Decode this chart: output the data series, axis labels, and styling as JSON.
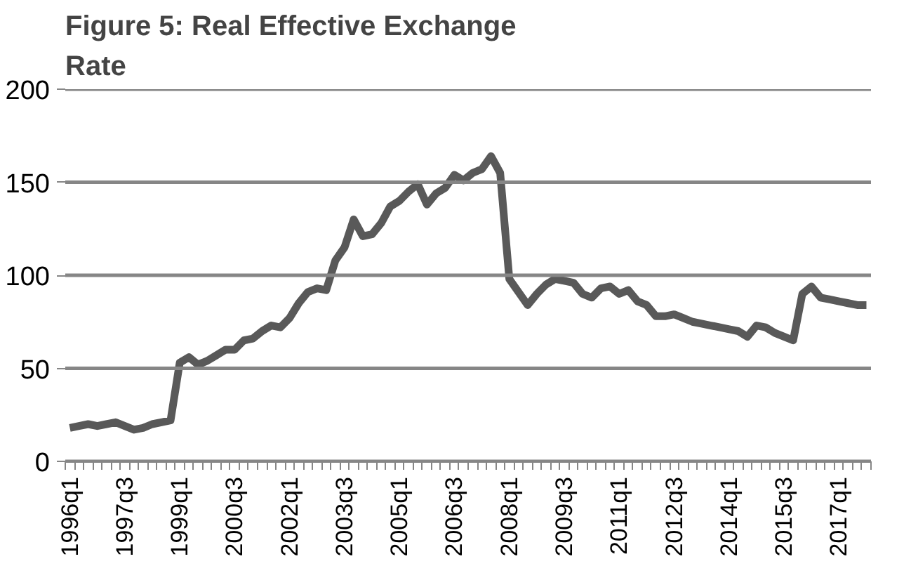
{
  "chart_data": {
    "type": "line",
    "title": "Figure 5: Real Effective Exchange Rate",
    "categories": [
      "1996q1",
      null,
      null,
      null,
      null,
      null,
      "1997q3",
      null,
      null,
      null,
      null,
      null,
      "1999q1",
      null,
      null,
      null,
      null,
      null,
      "2000q3",
      null,
      null,
      null,
      null,
      null,
      "2002q1",
      null,
      null,
      null,
      null,
      null,
      "2003q3",
      null,
      null,
      null,
      null,
      null,
      "2005q1",
      null,
      null,
      null,
      null,
      null,
      "2006q3",
      null,
      null,
      null,
      null,
      null,
      "2008q1",
      null,
      null,
      null,
      null,
      null,
      "2009q3",
      null,
      null,
      null,
      null,
      null,
      "2011q1",
      null,
      null,
      null,
      null,
      null,
      "2012q3",
      null,
      null,
      null,
      null,
      null,
      "2014q1",
      null,
      null,
      null,
      null,
      null,
      "2015q3",
      null,
      null,
      null,
      null,
      null,
      "2017q1",
      null,
      null,
      null
    ],
    "series": [
      {
        "color": "#595959",
        "values": [
          18,
          19,
          20,
          19,
          20,
          21,
          19,
          17,
          18,
          20,
          21,
          22,
          53,
          56,
          52,
          54,
          57,
          60,
          60,
          65,
          66,
          70,
          73,
          72,
          77,
          85,
          91,
          93,
          92,
          108,
          115,
          130,
          121,
          122,
          128,
          137,
          140,
          145,
          149,
          138,
          144,
          147,
          154,
          151,
          155,
          157,
          164,
          155,
          98,
          91,
          84,
          90,
          95,
          98,
          97,
          96,
          90,
          88,
          93,
          94,
          90,
          92,
          86,
          84,
          78,
          78,
          79,
          77,
          75,
          74,
          73,
          72,
          71,
          70,
          67,
          73,
          72,
          69,
          67,
          65,
          90,
          94,
          88,
          87,
          86,
          85,
          84,
          84
        ]
      }
    ],
    "ylim": [
      0,
      200
    ],
    "yticks": [
      0,
      50,
      100,
      150,
      200
    ],
    "grid": "y",
    "marker": "none",
    "line_style": "solid"
  }
}
